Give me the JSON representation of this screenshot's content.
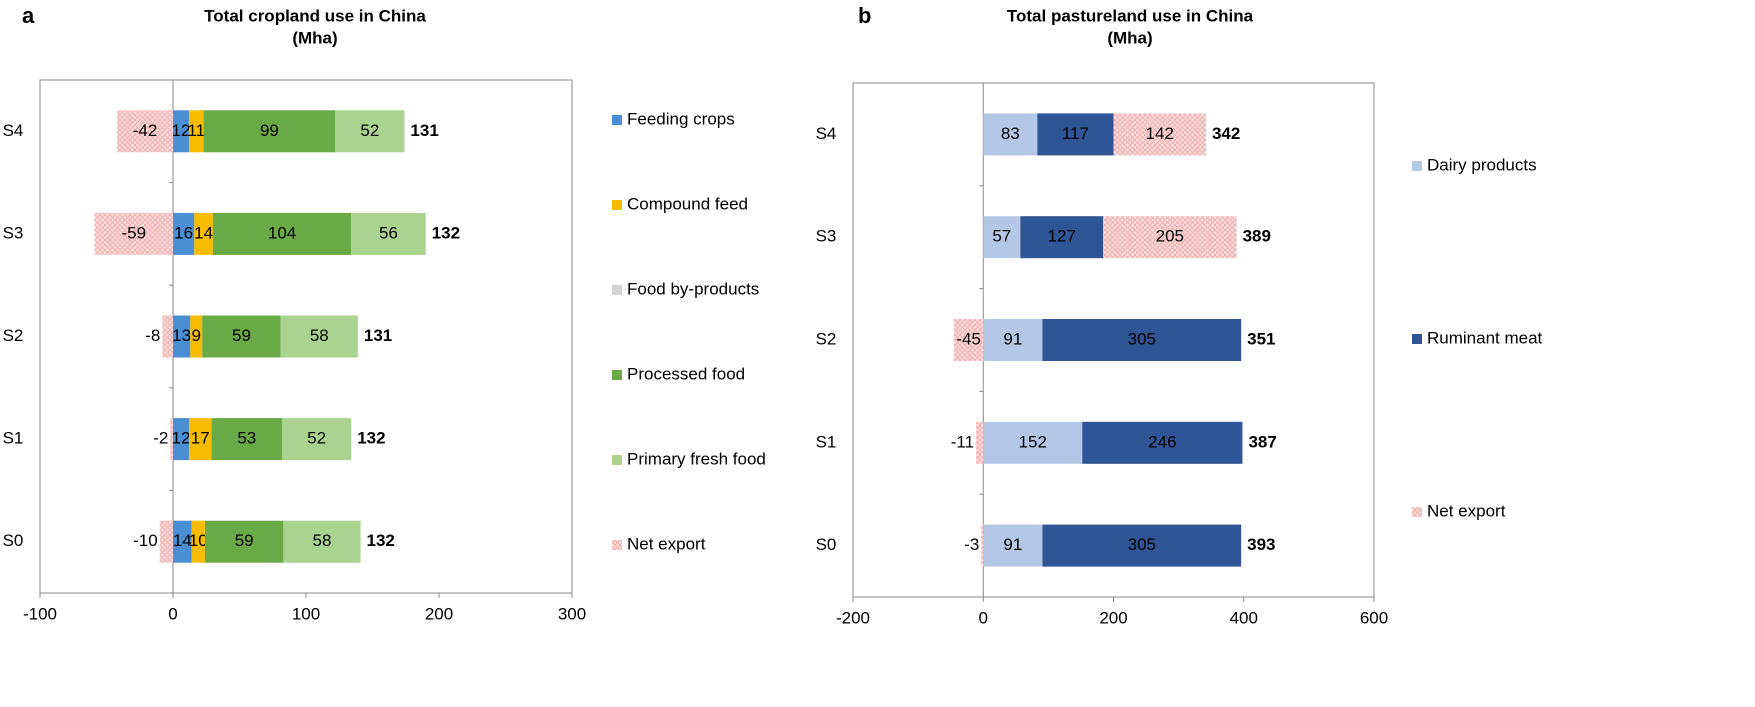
{
  "chart_data": [
    {
      "type": "bar",
      "panel": "a",
      "title": "Total cropland use in China",
      "subtitle": "(Mha)",
      "categories": [
        "S0",
        "S1",
        "S2",
        "S3",
        "S4"
      ],
      "series": [
        {
          "name": "Feeding crops",
          "color": "#4a8fd4",
          "values": [
            14,
            12,
            13,
            16,
            12
          ]
        },
        {
          "name": "Compound feed",
          "color": "#f7bb00",
          "values": [
            10,
            17,
            9,
            14,
            11
          ]
        },
        {
          "name": "Food by-products",
          "color": "#d4d4d4",
          "values": [
            0,
            0,
            0,
            0,
            0
          ]
        },
        {
          "name": "Processed food",
          "color": "#6aaa46",
          "values": [
            59,
            53,
            59,
            104,
            99
          ]
        },
        {
          "name": "Primary fresh food",
          "color": "#a9d38e",
          "values": [
            58,
            52,
            58,
            56,
            52
          ]
        },
        {
          "name": "Net export",
          "color": "#f2b3b1",
          "pattern": "crosshatch",
          "values": [
            -10,
            -2,
            -8,
            -59,
            -42
          ]
        }
      ],
      "totals": [
        132,
        132,
        131,
        132,
        131
      ],
      "xlim": [
        -100,
        300
      ],
      "xticks": [
        -100,
        0,
        100,
        200,
        300
      ]
    },
    {
      "type": "bar",
      "panel": "b",
      "title": "Total pastureland use in China",
      "subtitle": "(Mha)",
      "categories": [
        "S0",
        "S1",
        "S2",
        "S3",
        "S4"
      ],
      "series": [
        {
          "name": "Dairy products",
          "color": "#b4c7e7",
          "values": [
            91,
            152,
            91,
            57,
            83
          ]
        },
        {
          "name": "Ruminant meat",
          "color": "#2f5597",
          "values": [
            305,
            246,
            305,
            127,
            117
          ]
        },
        {
          "name": "Net export",
          "color": "#f2b3b1",
          "pattern": "crosshatch",
          "values": [
            -3,
            -11,
            -45,
            205,
            142
          ]
        }
      ],
      "totals": [
        393,
        387,
        351,
        389,
        342
      ],
      "xlim": [
        -200,
        600
      ],
      "xticks": [
        -200,
        0,
        200,
        400,
        600
      ]
    }
  ]
}
